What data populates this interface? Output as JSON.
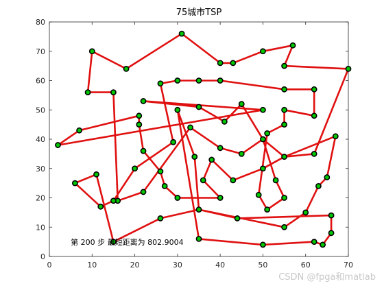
{
  "chart_data": {
    "type": "scatter",
    "title": "75城市TSP",
    "xlim": [
      0,
      70
    ],
    "ylim": [
      0,
      80
    ],
    "x_ticks": [
      0,
      10,
      20,
      30,
      40,
      50,
      60,
      70
    ],
    "y_ticks": [
      0,
      10,
      20,
      30,
      40,
      50,
      60,
      70,
      80
    ],
    "grid": false,
    "route_color": "#e01010",
    "point_fill": "#00c800",
    "point_edge": "#000000",
    "annotation": "第 200 步 最短距离为 802.9004",
    "annotation_pos": [
      5,
      4
    ],
    "route": [
      [
        2,
        38
      ],
      [
        7,
        43
      ],
      [
        21,
        48
      ],
      [
        21,
        45
      ],
      [
        22,
        36
      ],
      [
        26,
        29
      ],
      [
        27,
        24
      ],
      [
        30,
        20
      ],
      [
        40,
        20
      ],
      [
        36,
        26
      ],
      [
        38,
        33
      ],
      [
        43,
        26
      ],
      [
        50,
        30
      ],
      [
        55,
        34
      ],
      [
        62,
        35
      ],
      [
        70,
        64
      ],
      [
        55,
        65
      ],
      [
        57,
        72
      ],
      [
        50,
        70
      ],
      [
        43,
        66
      ],
      [
        40,
        66
      ],
      [
        31,
        76
      ],
      [
        18,
        64
      ],
      [
        10,
        70
      ],
      [
        9,
        56
      ],
      [
        15,
        56
      ],
      [
        16,
        19
      ],
      [
        22,
        22
      ],
      [
        33,
        44
      ],
      [
        40,
        37
      ],
      [
        45,
        35
      ],
      [
        50,
        40
      ],
      [
        53,
        26
      ],
      [
        55,
        20
      ],
      [
        51,
        16
      ],
      [
        49,
        21
      ],
      [
        51,
        42
      ],
      [
        55,
        45
      ],
      [
        55,
        50
      ],
      [
        62,
        48
      ],
      [
        62,
        57
      ],
      [
        55,
        57
      ],
      [
        40,
        60
      ],
      [
        35,
        60
      ],
      [
        30,
        60
      ],
      [
        26,
        59
      ],
      [
        29,
        39
      ],
      [
        20,
        30
      ],
      [
        15,
        19
      ],
      [
        12,
        17
      ],
      [
        6,
        25
      ],
      [
        11,
        28
      ],
      [
        15,
        5
      ],
      [
        26,
        13
      ],
      [
        35,
        16
      ],
      [
        34,
        34
      ],
      [
        30,
        50
      ],
      [
        35,
        6
      ],
      [
        50,
        4
      ],
      [
        62,
        5
      ],
      [
        64,
        4
      ],
      [
        66,
        8
      ],
      [
        66,
        14
      ],
      [
        44,
        13
      ],
      [
        35,
        16
      ],
      [
        55,
        10
      ],
      [
        60,
        15
      ],
      [
        63,
        24
      ],
      [
        65,
        27
      ],
      [
        67,
        41
      ],
      [
        55,
        34
      ],
      [
        50,
        40
      ],
      [
        45,
        52
      ],
      [
        41,
        46
      ],
      [
        35,
        51
      ],
      [
        22,
        53
      ],
      [
        50,
        50
      ],
      [
        2,
        38
      ]
    ],
    "watermark": "CSDN @fpga和matlab"
  }
}
